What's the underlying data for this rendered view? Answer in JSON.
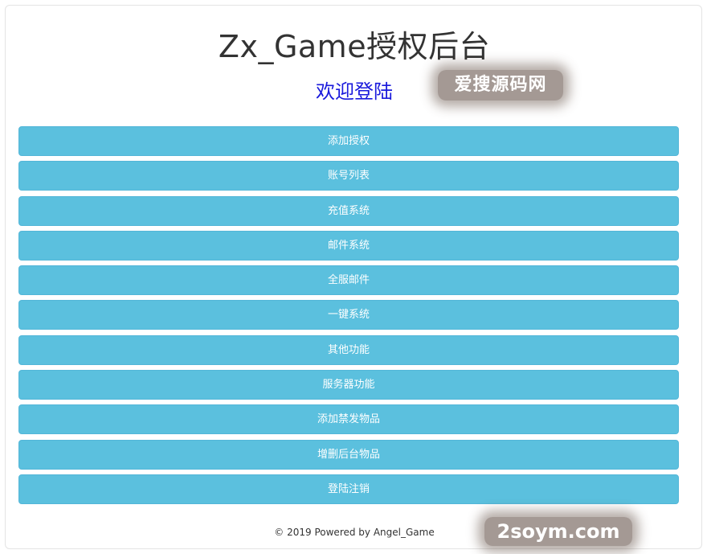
{
  "header": {
    "title": "Zx_Game授权后台",
    "welcome": "欢迎登陆"
  },
  "menu": {
    "items": [
      {
        "label": "添加授权"
      },
      {
        "label": "账号列表"
      },
      {
        "label": "充值系统"
      },
      {
        "label": "邮件系统"
      },
      {
        "label": "全服邮件"
      },
      {
        "label": "一键系统"
      },
      {
        "label": "其他功能"
      },
      {
        "label": "服务器功能"
      },
      {
        "label": "添加禁发物品"
      },
      {
        "label": "增删后台物品"
      },
      {
        "label": "登陆注销"
      }
    ]
  },
  "footer": {
    "copyright": "© 2019 Powered by Angel_Game"
  },
  "watermarks": {
    "top": "爱搜源码网",
    "bottom": "2soym.com"
  },
  "colors": {
    "button": "#5bc0de",
    "welcome": "#1a1adc",
    "title": "#333333"
  }
}
